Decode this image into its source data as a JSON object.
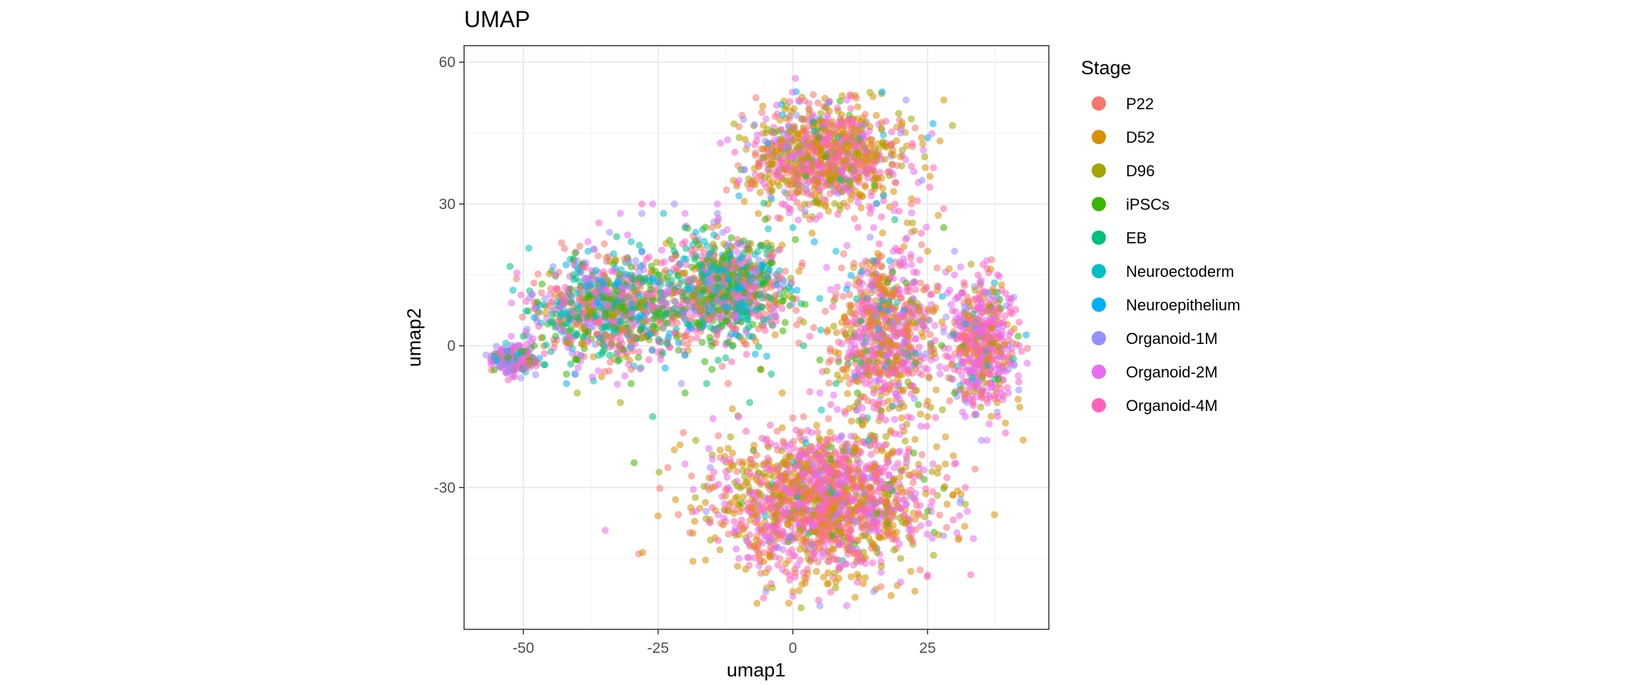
{
  "chart_data": {
    "type": "scatter",
    "title": "UMAP",
    "xlabel": "umap1",
    "ylabel": "umap2",
    "xlim": [
      -61,
      47.5
    ],
    "ylim": [
      -60,
      63.5
    ],
    "x_ticks": [
      -50,
      -25,
      0,
      25
    ],
    "x_tick_labels": [
      "-50",
      "-25",
      "0",
      "25"
    ],
    "y_ticks": [
      60,
      30,
      0,
      -30
    ],
    "y_tick_labels": [
      "60",
      "30",
      "0",
      "-30"
    ],
    "grid": true,
    "point_alpha": 0.55,
    "legend": {
      "title": "Stage",
      "position": "right",
      "entries": [
        {
          "label": "P22",
          "color": "#F8766D"
        },
        {
          "label": "D52",
          "color": "#D89000"
        },
        {
          "label": "D96",
          "color": "#A3A500"
        },
        {
          "label": "iPSCs",
          "color": "#39B600"
        },
        {
          "label": "EB",
          "color": "#00BF7D"
        },
        {
          "label": "Neuroectoderm",
          "color": "#00BFC4"
        },
        {
          "label": "Neuroepithelium",
          "color": "#00B0F6"
        },
        {
          "label": "Organoid-1M",
          "color": "#9590FF"
        },
        {
          "label": "Organoid-2M",
          "color": "#E76BF3"
        },
        {
          "label": "Organoid-4M",
          "color": "#FF62BC"
        }
      ]
    },
    "series": [
      {
        "name": "P22",
        "color": "#F8766D",
        "points": [
          [
            -36,
            5
          ],
          [
            -30,
            -5
          ],
          [
            -20,
            2
          ],
          [
            -12,
            -8
          ],
          [
            -5,
            10
          ],
          [
            2,
            -15
          ],
          [
            10,
            5
          ],
          [
            15,
            -20
          ],
          [
            20,
            10
          ],
          [
            -3,
            -30
          ],
          [
            5,
            -40
          ],
          [
            12,
            -45
          ],
          [
            -8,
            -42
          ],
          [
            18,
            -35
          ],
          [
            30,
            5
          ],
          [
            35,
            -10
          ],
          [
            0,
            35
          ],
          [
            8,
            45
          ],
          [
            -15,
            25
          ],
          [
            22,
            30
          ]
        ]
      },
      {
        "name": "D52",
        "color": "#D89000",
        "points": [
          [
            -22,
            -22
          ],
          [
            -15,
            -30
          ],
          [
            -10,
            -40
          ],
          [
            -5,
            -48
          ],
          [
            0,
            -52
          ],
          [
            8,
            -50
          ],
          [
            15,
            -42
          ],
          [
            20,
            -30
          ],
          [
            25,
            -15
          ],
          [
            5,
            -20
          ],
          [
            -2,
            -10
          ],
          [
            10,
            -5
          ],
          [
            -5,
            40
          ],
          [
            3,
            50
          ],
          [
            12,
            48
          ],
          [
            20,
            40
          ],
          [
            25,
            20
          ],
          [
            -25,
            -36
          ],
          [
            27,
            -40
          ],
          [
            28,
            52
          ],
          [
            -8,
            20
          ],
          [
            15,
            15
          ]
        ]
      },
      {
        "name": "D96",
        "color": "#A3A500",
        "points": [
          [
            -40,
            -10
          ],
          [
            -32,
            -12
          ],
          [
            -18,
            -20
          ],
          [
            -12,
            -35
          ],
          [
            0,
            -35
          ],
          [
            10,
            -30
          ],
          [
            20,
            -45
          ],
          [
            5,
            30
          ],
          [
            15,
            35
          ],
          [
            -5,
            45
          ],
          [
            22,
            48
          ],
          [
            -28,
            8
          ],
          [
            2,
            5
          ],
          [
            -2,
            -25
          ],
          [
            12,
            -12
          ]
        ]
      },
      {
        "name": "iPSCs",
        "color": "#39B600",
        "points": [
          [
            -48,
            0
          ],
          [
            -44,
            2
          ],
          [
            -40,
            -3
          ],
          [
            -35,
            10
          ],
          [
            -30,
            -8
          ],
          [
            -25,
            15
          ],
          [
            -18,
            5
          ],
          [
            -12,
            20
          ],
          [
            -6,
            -5
          ],
          [
            0,
            10
          ],
          [
            5,
            -3
          ],
          [
            12,
            -10
          ],
          [
            -20,
            -10
          ],
          [
            -15,
            -5
          ],
          [
            -42,
            -6
          ],
          [
            -38,
            3
          ],
          [
            28,
            25
          ],
          [
            25,
            -35
          ],
          [
            30,
            -10
          ]
        ]
      },
      {
        "name": "EB",
        "color": "#00BF7D",
        "points": [
          [
            -50,
            2
          ],
          [
            -46,
            -4
          ],
          [
            -40,
            6
          ],
          [
            -34,
            -2
          ],
          [
            -28,
            4
          ],
          [
            -22,
            20
          ],
          [
            -16,
            -8
          ],
          [
            -10,
            2
          ],
          [
            -4,
            -6
          ],
          [
            2,
            0
          ],
          [
            8,
            -8
          ],
          [
            -30,
            15
          ],
          [
            -20,
            25
          ],
          [
            -8,
            -12
          ],
          [
            14,
            -20
          ],
          [
            -26,
            -15
          ]
        ]
      },
      {
        "name": "Neuroectoderm",
        "color": "#00BFC4",
        "points": [
          [
            -55,
            -3
          ],
          [
            -50,
            -5
          ],
          [
            -45,
            5
          ],
          [
            -38,
            20
          ],
          [
            -30,
            22
          ],
          [
            -24,
            28
          ],
          [
            -15,
            20
          ],
          [
            -8,
            15
          ],
          [
            0,
            25
          ],
          [
            8,
            20
          ],
          [
            15,
            18
          ],
          [
            -35,
            0
          ],
          [
            -20,
            -2
          ],
          [
            -12,
            8
          ],
          [
            5,
            10
          ]
        ]
      },
      {
        "name": "Neuroepithelium",
        "color": "#00B0F6",
        "points": [
          [
            -53,
            -1
          ],
          [
            -48,
            6
          ],
          [
            -42,
            -8
          ],
          [
            -36,
            14
          ],
          [
            -28,
            20
          ],
          [
            -18,
            24
          ],
          [
            -10,
            12
          ],
          [
            26,
            47
          ],
          [
            25,
            44
          ],
          [
            18,
            18
          ],
          [
            10,
            12
          ],
          [
            4,
            22
          ]
        ]
      },
      {
        "name": "Organoid-1M",
        "color": "#9590FF",
        "points": [
          [
            -54,
            -4
          ],
          [
            -46,
            10
          ],
          [
            -40,
            18
          ],
          [
            -34,
            24
          ],
          [
            -28,
            28
          ],
          [
            -22,
            30
          ],
          [
            -14,
            28
          ],
          [
            20,
            45
          ],
          [
            24,
            35
          ],
          [
            30,
            20
          ],
          [
            38,
            10
          ],
          [
            40,
            -5
          ],
          [
            35,
            -20
          ],
          [
            -5,
            -52
          ],
          [
            5,
            -55
          ],
          [
            15,
            -52
          ],
          [
            21,
            52
          ]
        ]
      },
      {
        "name": "Organoid-2M",
        "color": "#E76BF3",
        "points": [
          [
            -56,
            -4
          ],
          [
            -52,
            -6
          ],
          [
            -48,
            8
          ],
          [
            -44,
            15
          ],
          [
            -38,
            22
          ],
          [
            -32,
            28
          ],
          [
            -26,
            30
          ],
          [
            -20,
            28
          ],
          [
            -14,
            30
          ],
          [
            30,
            15
          ],
          [
            36,
            18
          ],
          [
            40,
            10
          ],
          [
            42,
            0
          ],
          [
            40,
            -10
          ],
          [
            36,
            -20
          ],
          [
            32,
            -15
          ],
          [
            26,
            -25
          ],
          [
            20,
            -50
          ],
          [
            10,
            -55
          ],
          [
            0,
            -53
          ],
          [
            -10,
            -45
          ],
          [
            -18,
            -35
          ],
          [
            -20,
            -25
          ],
          [
            0,
            40
          ],
          [
            10,
            52
          ],
          [
            -5,
            48
          ],
          [
            15,
            25
          ],
          [
            5,
            -10
          ],
          [
            -5,
            -20
          ],
          [
            18,
            -30
          ],
          [
            25,
            -5
          ],
          [
            -10,
            35
          ]
        ]
      },
      {
        "name": "Organoid-4M",
        "color": "#FF62BC",
        "points": [
          [
            -50,
            -5
          ],
          [
            -44,
            12
          ],
          [
            -36,
            26
          ],
          [
            -28,
            30
          ],
          [
            -20,
            22
          ],
          [
            30,
            -5
          ],
          [
            34,
            10
          ],
          [
            38,
            15
          ],
          [
            42,
            5
          ],
          [
            38,
            -15
          ],
          [
            30,
            -25
          ],
          [
            22,
            -40
          ],
          [
            12,
            -50
          ],
          [
            2,
            -48
          ],
          [
            -8,
            -40
          ],
          [
            -15,
            -28
          ],
          [
            5,
            -25
          ],
          [
            15,
            -10
          ],
          [
            20,
            20
          ],
          [
            28,
            29
          ],
          [
            22,
            38
          ],
          [
            8,
            40
          ],
          [
            -2,
            30
          ],
          [
            -6,
            -35
          ],
          [
            12,
            -35
          ],
          [
            32,
            -30
          ]
        ]
      }
    ]
  }
}
